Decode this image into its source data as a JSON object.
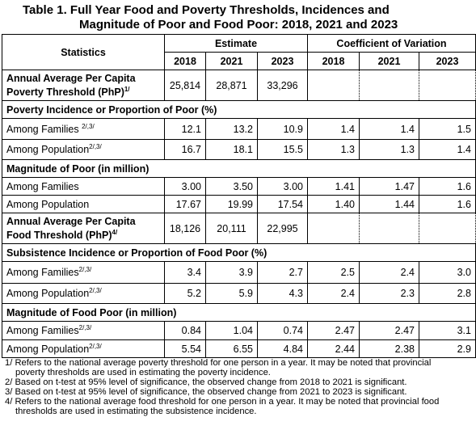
{
  "title": [
    "Table 1. Full Year Food and Poverty Thresholds, Incidences and",
    "Magnitude of Poor and Food Poor: 2018, 2021 and 2023"
  ],
  "header": {
    "statistics": "Statistics",
    "estimate": "Estimate",
    "cv": "Coefficient of Variation",
    "years": [
      "2018",
      "2021",
      "2023",
      "2018",
      "2021",
      "2023"
    ]
  },
  "rows": [
    {
      "lines": [
        "Annual Average Per Capita",
        "Poverty Threshold (PhP)"
      ],
      "sup": "1/",
      "values": [
        "25,814",
        "28,871",
        "33,296"
      ]
    },
    {
      "section": "Poverty Incidence or Proportion of Poor (%)"
    },
    {
      "label": "Among Families ",
      "sup": "2/,3/",
      "values": [
        "12.1",
        "13.2",
        "10.9",
        "1.4",
        "1.4",
        "1.5"
      ]
    },
    {
      "label": "Among Population",
      "sup": "2/,3/",
      "values": [
        "16.7",
        "18.1",
        "15.5",
        "1.3",
        "1.3",
        "1.4"
      ]
    },
    {
      "section": "Magnitude of Poor (in million)"
    },
    {
      "label": "Among Families",
      "values": [
        "3.00",
        "3.50",
        "3.00",
        "1.41",
        "1.47",
        "1.6"
      ]
    },
    {
      "label": "Among Population",
      "values": [
        "17.67",
        "19.99",
        "17.54",
        "1.40",
        "1.44",
        "1.6"
      ]
    },
    {
      "lines": [
        "Annual Average Per Capita",
        "Food Threshold (PhP)"
      ],
      "sup": "4/",
      "values": [
        "18,126",
        "20,111",
        "22,995"
      ]
    },
    {
      "section": "Subsistence Incidence or Proportion of Food Poor (%)"
    },
    {
      "label": "Among Families",
      "sup": "2/,3/",
      "values": [
        "3.4",
        "3.9",
        "2.7",
        "2.5",
        "2.4",
        "3.0"
      ]
    },
    {
      "label": "Among Population",
      "sup": "2/,3/",
      "values": [
        "5.2",
        "5.9",
        "4.3",
        "2.4",
        "2.3",
        "2.8"
      ]
    },
    {
      "section": "Magnitude of Food Poor (in million)"
    },
    {
      "label": "Among Families",
      "sup": "2/,3/",
      "values": [
        "0.84",
        "1.04",
        "0.74",
        "2.47",
        "2.47",
        "3.1"
      ]
    },
    {
      "label": "Among Population",
      "sup": "2/,3/",
      "values": [
        "5.54",
        "6.55",
        "4.84",
        "2.44",
        "2.38",
        "2.9"
      ]
    }
  ],
  "footnotes": [
    [
      "1/ Refers to the national average poverty threshold for one person in a year.  It may be noted that provincial",
      "poverty thresholds are used in estimating the poverty incidence."
    ],
    [
      "2/ Based on t-test at 95% level of significance, the observed change from 2018 to 2021 is significant."
    ],
    [
      "3/ Based on t-test at 95% level of significance, the observed change from 2021 to 2023 is significant."
    ],
    [
      "4/ Refers to the national average food threshold for one person in a year.  It may be noted that provincial food",
      "thresholds are used in estimating the subsistence incidence."
    ]
  ]
}
